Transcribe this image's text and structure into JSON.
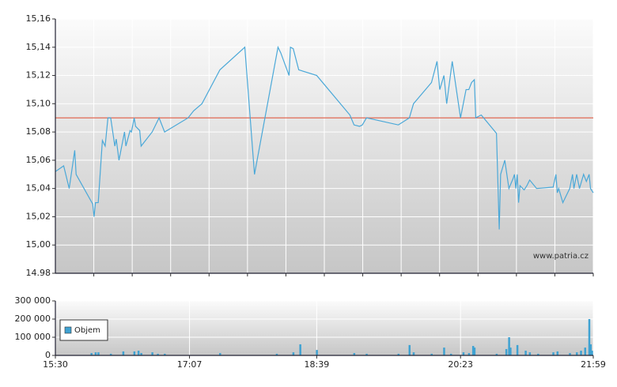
{
  "chart_data": [
    {
      "type": "line",
      "color": "#4aa8d8",
      "x": [
        930,
        936,
        940,
        944,
        945,
        957,
        958,
        959,
        961,
        964,
        966,
        968,
        970,
        973,
        974,
        976,
        980,
        981,
        984,
        985,
        987,
        988,
        991,
        992,
        1000,
        1005,
        1009,
        1026,
        1030,
        1036,
        1049,
        1067,
        1074,
        1091,
        1093,
        1099,
        1100,
        1102,
        1106,
        1119,
        1143,
        1146,
        1150,
        1152,
        1155,
        1178,
        1186,
        1189,
        1202,
        1206,
        1208,
        1211,
        1213,
        1217,
        1223,
        1227,
        1229,
        1231,
        1233,
        1234,
        1238,
        1249,
        1251,
        1252,
        1255,
        1258,
        1261,
        1262,
        1263,
        1264,
        1265,
        1266,
        1269,
        1271,
        1273,
        1278,
        1290,
        1292,
        1293,
        1294,
        1297,
        1302,
        1304,
        1305,
        1307,
        1309,
        1312,
        1314,
        1316,
        1317,
        1319
      ],
      "values": [
        15.052,
        15.056,
        15.04,
        15.067,
        15.05,
        15.029,
        15.02,
        15.03,
        15.03,
        15.074,
        15.07,
        15.09,
        15.09,
        15.07,
        15.075,
        15.06,
        15.08,
        15.07,
        15.081,
        15.08,
        15.09,
        15.084,
        15.081,
        15.07,
        15.08,
        15.09,
        15.08,
        15.09,
        15.095,
        15.1,
        15.124,
        15.14,
        15.05,
        15.14,
        15.136,
        15.12,
        15.14,
        15.139,
        15.124,
        15.12,
        15.092,
        15.085,
        15.084,
        15.085,
        15.09,
        15.085,
        15.09,
        15.1,
        15.115,
        15.13,
        15.11,
        15.12,
        15.1,
        15.13,
        15.09,
        15.11,
        15.11,
        15.115,
        15.117,
        15.09,
        15.092,
        15.079,
        15.011,
        15.05,
        15.06,
        15.04,
        15.047,
        15.05,
        15.04,
        15.05,
        15.03,
        15.042,
        15.039,
        15.042,
        15.046,
        15.04,
        15.041,
        15.05,
        15.037,
        15.04,
        15.03,
        15.04,
        15.05,
        15.04,
        15.05,
        15.04,
        15.05,
        15.045,
        15.05,
        15.04,
        15.037
      ],
      "xlim": [
        930,
        1319
      ],
      "ylim": [
        14.98,
        15.16
      ],
      "yticks": [
        {
          "value": 15.16,
          "label": "15,16"
        },
        {
          "value": 15.14,
          "label": "15,14"
        },
        {
          "value": 15.12,
          "label": "15,12"
        },
        {
          "value": 15.1,
          "label": "15,10"
        },
        {
          "value": 15.08,
          "label": "15,08"
        },
        {
          "value": 15.06,
          "label": "15,06"
        },
        {
          "value": 15.04,
          "label": "15,04"
        },
        {
          "value": 15.02,
          "label": "15,02"
        },
        {
          "value": 15.0,
          "label": "15,00"
        },
        {
          "value": 14.98,
          "label": "14.98"
        }
      ],
      "reference_line": {
        "value": 15.09,
        "color": "#e06a55"
      },
      "watermark": "www.patria.cz",
      "grid": true
    },
    {
      "type": "bar",
      "x": [
        956,
        959,
        961,
        970,
        979,
        987,
        990,
        992,
        1000,
        1004,
        1009,
        1049,
        1090,
        1102,
        1107,
        1119,
        1146,
        1155,
        1178,
        1186,
        1189,
        1202,
        1211,
        1216,
        1225,
        1229,
        1232,
        1233,
        1249,
        1256,
        1258,
        1259,
        1264,
        1270,
        1273,
        1279,
        1290,
        1293,
        1302,
        1307,
        1310,
        1313,
        1316,
        1317,
        1318
      ],
      "series": [
        {
          "name": "Objem",
          "color": "#3fa2d2",
          "values": [
            13000,
            17000,
            17000,
            9000,
            22000,
            22000,
            26000,
            13000,
            17000,
            9000,
            9000,
            13000,
            9000,
            17000,
            61000,
            30000,
            13000,
            9000,
            9000,
            57000,
            17000,
            9000,
            43000,
            9000,
            17000,
            13000,
            52000,
            43000,
            9000,
            35000,
            100000,
            43000,
            57000,
            26000,
            17000,
            9000,
            17000,
            22000,
            13000,
            17000,
            26000,
            43000,
            200000,
            61000,
            26000
          ]
        }
      ],
      "xlim": [
        930,
        1319
      ],
      "xticks": [
        {
          "value": 930,
          "label": "15:30"
        },
        {
          "value": 1027,
          "label": "17:07"
        },
        {
          "value": 1119,
          "label": "18:39"
        },
        {
          "value": 1223,
          "label": "20:23"
        },
        {
          "value": 1319,
          "label": "21:59"
        }
      ],
      "ylim": [
        0,
        300000
      ],
      "yticks": [
        {
          "value": 0,
          "label": "0"
        },
        {
          "value": 100000,
          "label": "100 000"
        },
        {
          "value": 200000,
          "label": "200 000"
        },
        {
          "value": 300000,
          "label": "300 000"
        }
      ],
      "legend": "upper left",
      "grid": true
    }
  ]
}
